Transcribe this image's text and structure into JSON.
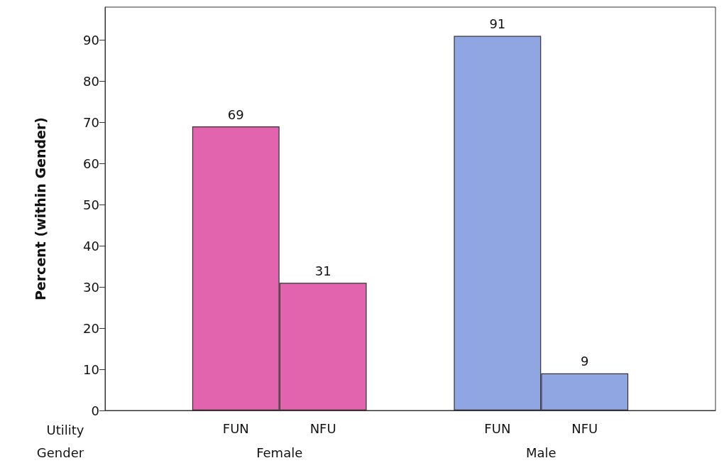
{
  "chart_data": {
    "type": "bar",
    "ylabel": "Percent (within Gender)",
    "xlabel": "Utility",
    "categories": [
      null,
      "FUN",
      "NFU",
      null,
      "FUN",
      "NFU",
      null
    ],
    "values": [
      null,
      69,
      31,
      null,
      91,
      9,
      null
    ],
    "colors": [
      null,
      "#e264ae",
      "#e264ae",
      null,
      "#8fa6e2",
      "#8fa6e2",
      null
    ],
    "ylim": [
      0,
      98
    ],
    "yticks": [
      0,
      10,
      20,
      30,
      40,
      50,
      60,
      70,
      80,
      90
    ],
    "data_labels": true,
    "annotations": [
      "Gender",
      "Female",
      "Male"
    ]
  }
}
